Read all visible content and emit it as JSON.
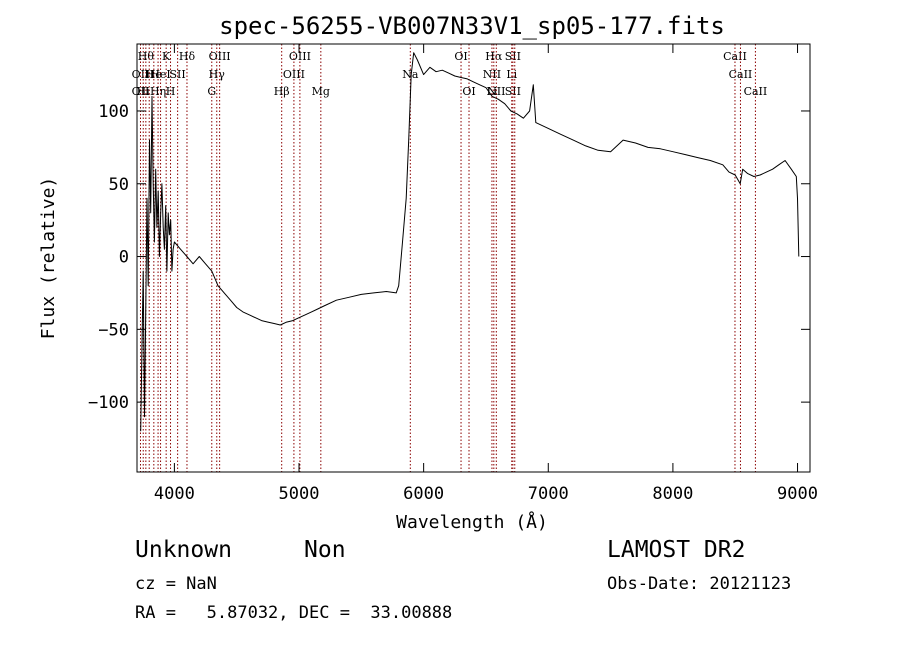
{
  "chart_data": {
    "type": "line",
    "title": "spec-56255-VB007N33V1_sp05-177.fits",
    "xlabel": "Wavelength (Å)",
    "ylabel": "Flux (relative)",
    "xlim": [
      3700,
      9100
    ],
    "ylim": [
      -148,
      146
    ],
    "x_ticks": [
      4000,
      5000,
      6000,
      7000,
      8000,
      9000
    ],
    "x_tick_labels": [
      "4000",
      "5000",
      "6000",
      "7000",
      "8000",
      "9000"
    ],
    "y_ticks": [
      -100,
      -50,
      0,
      50,
      100
    ],
    "y_tick_labels": [
      "−100",
      "−50",
      "0",
      "50",
      "100"
    ],
    "grid": false,
    "series": [
      {
        "color": "#000000",
        "points": [
          [
            3730,
            -120
          ],
          [
            3740,
            -60
          ],
          [
            3750,
            -10
          ],
          [
            3760,
            -110
          ],
          [
            3770,
            -40
          ],
          [
            3780,
            40
          ],
          [
            3790,
            -20
          ],
          [
            3800,
            80
          ],
          [
            3810,
            30
          ],
          [
            3820,
            110
          ],
          [
            3830,
            50
          ],
          [
            3840,
            10
          ],
          [
            3850,
            60
          ],
          [
            3860,
            20
          ],
          [
            3870,
            45
          ],
          [
            3880,
            0
          ],
          [
            3890,
            30
          ],
          [
            3900,
            50
          ],
          [
            3910,
            20
          ],
          [
            3920,
            5
          ],
          [
            3930,
            35
          ],
          [
            3940,
            -10
          ],
          [
            3950,
            30
          ],
          [
            3960,
            15
          ],
          [
            3970,
            25
          ],
          [
            3980,
            -10
          ],
          [
            3990,
            5
          ],
          [
            4000,
            10
          ],
          [
            4050,
            5
          ],
          [
            4100,
            0
          ],
          [
            4150,
            -5
          ],
          [
            4200,
            0
          ],
          [
            4250,
            -5
          ],
          [
            4300,
            -10
          ],
          [
            4350,
            -20
          ],
          [
            4400,
            -25
          ],
          [
            4450,
            -30
          ],
          [
            4500,
            -35
          ],
          [
            4550,
            -38
          ],
          [
            4600,
            -40
          ],
          [
            4650,
            -42
          ],
          [
            4700,
            -44
          ],
          [
            4750,
            -45
          ],
          [
            4800,
            -46
          ],
          [
            4850,
            -47
          ],
          [
            4900,
            -45
          ],
          [
            4950,
            -44
          ],
          [
            5000,
            -42
          ],
          [
            5050,
            -40
          ],
          [
            5100,
            -38
          ],
          [
            5150,
            -36
          ],
          [
            5200,
            -34
          ],
          [
            5300,
            -30
          ],
          [
            5400,
            -28
          ],
          [
            5500,
            -26
          ],
          [
            5600,
            -25
          ],
          [
            5700,
            -24
          ],
          [
            5780,
            -25
          ],
          [
            5800,
            -20
          ],
          [
            5830,
            10
          ],
          [
            5860,
            40
          ],
          [
            5880,
            80
          ],
          [
            5900,
            125
          ],
          [
            5920,
            140
          ],
          [
            5950,
            135
          ],
          [
            6000,
            125
          ],
          [
            6050,
            130
          ],
          [
            6100,
            127
          ],
          [
            6150,
            128
          ],
          [
            6200,
            126
          ],
          [
            6250,
            124
          ],
          [
            6300,
            123
          ],
          [
            6350,
            122
          ],
          [
            6400,
            120
          ],
          [
            6450,
            118
          ],
          [
            6500,
            116
          ],
          [
            6550,
            110
          ],
          [
            6600,
            108
          ],
          [
            6650,
            105
          ],
          [
            6700,
            100
          ],
          [
            6750,
            98
          ],
          [
            6800,
            95
          ],
          [
            6850,
            100
          ],
          [
            6880,
            118
          ],
          [
            6900,
            92
          ],
          [
            7000,
            88
          ],
          [
            7100,
            84
          ],
          [
            7200,
            80
          ],
          [
            7300,
            76
          ],
          [
            7400,
            73
          ],
          [
            7500,
            72
          ],
          [
            7600,
            80
          ],
          [
            7700,
            78
          ],
          [
            7800,
            75
          ],
          [
            7900,
            74
          ],
          [
            8000,
            72
          ],
          [
            8100,
            70
          ],
          [
            8200,
            68
          ],
          [
            8300,
            66
          ],
          [
            8400,
            63
          ],
          [
            8450,
            58
          ],
          [
            8500,
            56
          ],
          [
            8540,
            50
          ],
          [
            8560,
            60
          ],
          [
            8600,
            57
          ],
          [
            8650,
            55
          ],
          [
            8700,
            56
          ],
          [
            8750,
            58
          ],
          [
            8800,
            60
          ],
          [
            8850,
            63
          ],
          [
            8900,
            66
          ],
          [
            8950,
            60
          ],
          [
            8990,
            55
          ],
          [
            9000,
            40
          ],
          [
            9010,
            0
          ]
        ]
      }
    ],
    "line_markers": [
      {
        "x": 3728,
        "labels": [
          {
            "row": 1,
            "text": "OII"
          },
          {
            "row": 2,
            "text": "OII"
          }
        ]
      },
      {
        "x": 3750,
        "labels": [
          {
            "row": 2,
            "text": "Hi"
          }
        ]
      },
      {
        "x": 3771,
        "labels": [
          {
            "row": 0,
            "text": "Hθ"
          }
        ]
      },
      {
        "x": 3798,
        "labels": [
          {
            "row": 1,
            "text": "H"
          }
        ]
      },
      {
        "x": 3835,
        "labels": [
          {
            "row": 1,
            "text": "He"
          }
        ]
      },
      {
        "x": 3869,
        "labels": [
          {
            "row": 2,
            "text": "Hη"
          }
        ]
      },
      {
        "x": 3889,
        "labels": [
          {
            "row": 1,
            "text": "HeI"
          }
        ]
      },
      {
        "x": 3934,
        "labels": [
          {
            "row": 0,
            "text": "K"
          }
        ]
      },
      {
        "x": 3969,
        "labels": [
          {
            "row": 2,
            "text": "H"
          }
        ]
      },
      {
        "x": 4026,
        "labels": [
          {
            "row": 1,
            "text": "SII"
          }
        ]
      },
      {
        "x": 4101,
        "labels": [
          {
            "row": 0,
            "text": "Hδ"
          }
        ]
      },
      {
        "x": 4300,
        "labels": [
          {
            "row": 2,
            "text": "G"
          }
        ]
      },
      {
        "x": 4340,
        "labels": [
          {
            "row": 1,
            "text": "Hγ"
          }
        ]
      },
      {
        "x": 4363,
        "labels": [
          {
            "row": 0,
            "text": "OIII"
          }
        ]
      },
      {
        "x": 4861,
        "labels": [
          {
            "row": 2,
            "text": "Hβ"
          }
        ]
      },
      {
        "x": 4959,
        "labels": [
          {
            "row": 1,
            "text": "OIII"
          }
        ]
      },
      {
        "x": 5007,
        "labels": [
          {
            "row": 0,
            "text": "OIII"
          }
        ]
      },
      {
        "x": 5175,
        "labels": [
          {
            "row": 2,
            "text": "Mg"
          }
        ]
      },
      {
        "x": 5893,
        "labels": [
          {
            "row": 1,
            "text": "Na"
          }
        ]
      },
      {
        "x": 6300,
        "labels": [
          {
            "row": 0,
            "text": "OI"
          }
        ]
      },
      {
        "x": 6364,
        "labels": [
          {
            "row": 2,
            "text": "OI"
          }
        ]
      },
      {
        "x": 6548,
        "labels": [
          {
            "row": 1,
            "text": "NII"
          },
          {
            "row": 2,
            "text": "Li"
          }
        ]
      },
      {
        "x": 6563,
        "labels": [
          {
            "row": 0,
            "text": "Hα"
          }
        ]
      },
      {
        "x": 6583,
        "labels": [
          {
            "row": 2,
            "text": "NII"
          }
        ]
      },
      {
        "x": 6707,
        "labels": [
          {
            "row": 1,
            "text": "Li"
          }
        ]
      },
      {
        "x": 6716,
        "labels": [
          {
            "row": 0,
            "text": "SII"
          },
          {
            "row": 2,
            "text": "SII"
          }
        ]
      },
      {
        "x": 6731,
        "labels": []
      },
      {
        "x": 8498,
        "labels": [
          {
            "row": 0,
            "text": "CaII"
          }
        ]
      },
      {
        "x": 8542,
        "labels": [
          {
            "row": 1,
            "text": "CaII"
          }
        ]
      },
      {
        "x": 8662,
        "labels": [
          {
            "row": 2,
            "text": "CaII"
          }
        ]
      }
    ]
  },
  "info": {
    "class_text": "Unknown",
    "subclass_text": "Non",
    "survey": "LAMOST DR2",
    "cz": "cz = NaN",
    "obs_date": "Obs-Date: 20121123",
    "coords": "RA =   5.87032, DEC =  33.00888"
  },
  "colors": {
    "spectrum": "#000000",
    "marker": "#8b0000",
    "axes": "#000000"
  }
}
